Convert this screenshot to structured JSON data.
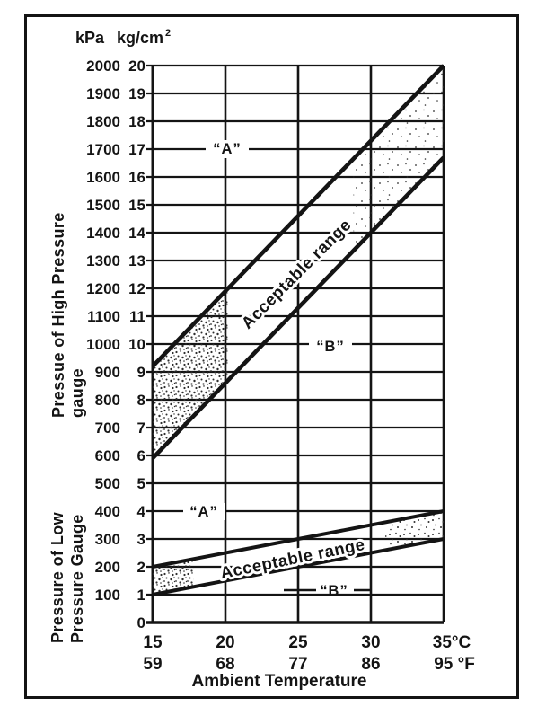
{
  "page": {
    "background": "#ffffff",
    "ink": "#141414",
    "stipple_color": "#2e2e2e"
  },
  "chart_data": {
    "type": "line",
    "title": "",
    "x_axis": {
      "label": "Ambient Temperature",
      "values_c": [
        15,
        20,
        25,
        30,
        35
      ],
      "range_c": [
        15,
        35
      ],
      "ticks": [
        {
          "c": "15",
          "f": "59"
        },
        {
          "c": "20",
          "f": "68"
        },
        {
          "c": "25",
          "f": "77"
        },
        {
          "c": "30",
          "f": "86"
        },
        {
          "c": "35°C",
          "f": "95 °F"
        }
      ]
    },
    "y_axis": {
      "unit_primary": "kPa",
      "unit_secondary": "kg/cm",
      "unit_secondary_sup": "2",
      "range_kpa": [
        0,
        2000
      ],
      "tick_step_kpa": 100,
      "kg_per_100_kpa": 1,
      "grid": true
    },
    "series": [
      {
        "name": "high-pressure-upper-limit-A",
        "points_c_kpa": [
          [
            15,
            920
          ],
          [
            35,
            2000
          ]
        ]
      },
      {
        "name": "high-pressure-lower-limit-B",
        "points_c_kpa": [
          [
            15,
            590
          ],
          [
            35,
            1670
          ]
        ]
      },
      {
        "name": "low-pressure-upper-limit-A",
        "points_c_kpa": [
          [
            15,
            200
          ],
          [
            35,
            400
          ]
        ]
      },
      {
        "name": "low-pressure-lower-limit-B",
        "points_c_kpa": [
          [
            15,
            100
          ],
          [
            35,
            300
          ]
        ]
      }
    ],
    "bands": [
      {
        "name": "high-pressure-acceptable-range",
        "upper": "high-pressure-upper-limit-A",
        "lower": "high-pressure-lower-limit-B",
        "label": "Acceptable range"
      },
      {
        "name": "low-pressure-acceptable-range",
        "upper": "low-pressure-upper-limit-A",
        "lower": "low-pressure-lower-limit-B",
        "label": "Acceptable range"
      }
    ],
    "annotations": {
      "high_a": "“A”",
      "high_b": "“B”",
      "high_range": "Acceptable range",
      "low_a": "“A”",
      "low_b": "“B”",
      "low_range": "Acceptable range"
    },
    "left_axis_titles": {
      "high_line1": "Pressue of High Pressure",
      "high_line2": "gauge",
      "low_line1": "Pressure of Low",
      "low_line2": "Pressure Gauge"
    }
  }
}
